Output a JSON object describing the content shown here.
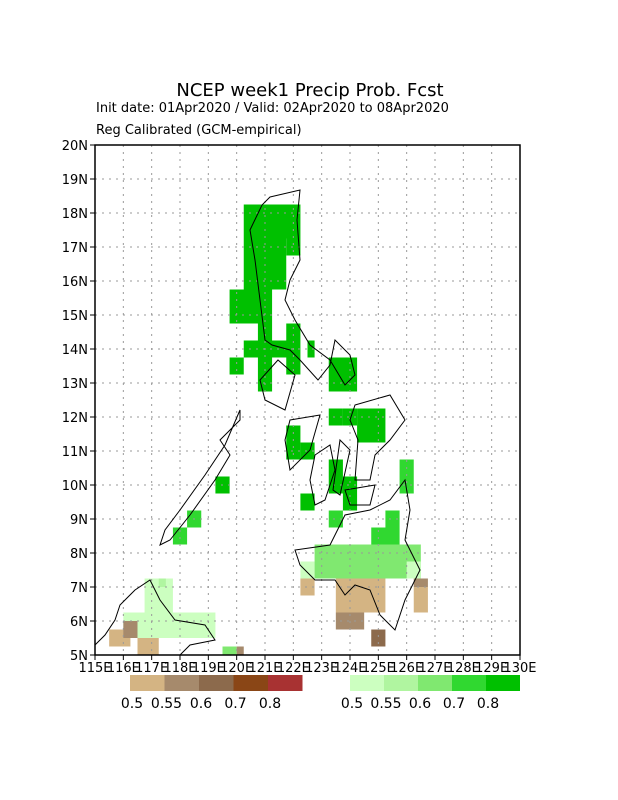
{
  "map": {
    "title": "NCEP week1 Precip Prob. Fcst",
    "subtitle": "Init date: 01Apr2020 / Valid: 02Apr2020 to 08Apr2020",
    "subtitle2": "Reg Calibrated (GCM-empirical)",
    "xlim": [
      115,
      130
    ],
    "ylim": [
      5,
      20
    ],
    "xticks": [
      {
        "value": 115,
        "label": "115E"
      },
      {
        "value": 116,
        "label": "116E"
      },
      {
        "value": 117,
        "label": "117E"
      },
      {
        "value": 118,
        "label": "118E"
      },
      {
        "value": 119,
        "label": "119E"
      },
      {
        "value": 120,
        "label": "120E"
      },
      {
        "value": 121,
        "label": "121E"
      },
      {
        "value": 122,
        "label": "122E"
      },
      {
        "value": 123,
        "label": "123E"
      },
      {
        "value": 124,
        "label": "124E"
      },
      {
        "value": 125,
        "label": "125E"
      },
      {
        "value": 126,
        "label": "126E"
      },
      {
        "value": 127,
        "label": "127E"
      },
      {
        "value": 128,
        "label": "128E"
      },
      {
        "value": 129,
        "label": "129E"
      },
      {
        "value": 130,
        "label": "130E"
      }
    ],
    "yticks": [
      {
        "value": 5,
        "label": "5N"
      },
      {
        "value": 6,
        "label": "6N"
      },
      {
        "value": 7,
        "label": "7N"
      },
      {
        "value": 8,
        "label": "8N"
      },
      {
        "value": 9,
        "label": "9N"
      },
      {
        "value": 10,
        "label": "10N"
      },
      {
        "value": 11,
        "label": "11N"
      },
      {
        "value": 12,
        "label": "12N"
      },
      {
        "value": 13,
        "label": "13N"
      },
      {
        "value": 14,
        "label": "14N"
      },
      {
        "value": 15,
        "label": "15N"
      },
      {
        "value": 16,
        "label": "16N"
      },
      {
        "value": 17,
        "label": "17N"
      },
      {
        "value": 18,
        "label": "18N"
      },
      {
        "value": 19,
        "label": "19N"
      },
      {
        "value": 20,
        "label": "20N"
      }
    ],
    "grid": true,
    "brown_scale": {
      "colors": [
        "#d4b483",
        "#a68a6c",
        "#8c6a4c",
        "#8a4616",
        "#a83232"
      ],
      "labels": [
        0.5,
        0.55,
        0.6,
        0.7,
        0.8
      ]
    },
    "green_scale": {
      "colors": [
        "#ccffc0",
        "#b0f5a0",
        "#80e870",
        "#30d830",
        "#00c000"
      ],
      "labels": [
        0.5,
        0.55,
        0.6,
        0.7,
        0.8
      ]
    },
    "green_cells": [
      [
        120.25,
        122.25,
        17.25,
        18.25,
        4
      ],
      [
        120.25,
        121.75,
        16.25,
        17.25,
        4
      ],
      [
        121.75,
        122.25,
        16.75,
        17.25,
        4
      ],
      [
        120.25,
        121.75,
        15.75,
        16.25,
        4
      ],
      [
        119.75,
        121.25,
        14.75,
        15.75,
        4
      ],
      [
        120.75,
        121.25,
        14.25,
        14.75,
        4
      ],
      [
        121.75,
        122.25,
        14.25,
        14.75,
        4
      ],
      [
        120.25,
        122.25,
        13.75,
        14.25,
        4
      ],
      [
        122.5,
        122.75,
        13.75,
        14.25,
        4
      ],
      [
        119.75,
        120.25,
        13.25,
        13.75,
        4
      ],
      [
        120.75,
        121.25,
        12.75,
        13.75,
        4
      ],
      [
        121.75,
        122.25,
        13.25,
        13.75,
        4
      ],
      [
        123.25,
        124.25,
        12.75,
        13.75,
        4
      ],
      [
        123.25,
        123.75,
        11.75,
        12.25,
        4
      ],
      [
        124.25,
        125.25,
        11.25,
        12.25,
        4
      ],
      [
        123.75,
        124.25,
        11.75,
        12.25,
        4
      ],
      [
        121.75,
        122.25,
        10.75,
        11.75,
        4
      ],
      [
        122.25,
        122.75,
        10.75,
        11.25,
        4
      ],
      [
        123.25,
        123.75,
        9.75,
        10.75,
        4
      ],
      [
        123.75,
        124.25,
        9.75,
        10.25,
        4
      ],
      [
        122.25,
        122.75,
        9.25,
        9.75,
        4
      ],
      [
        123.25,
        123.75,
        8.75,
        9.25,
        3
      ],
      [
        123.75,
        124.25,
        9.25,
        9.75,
        4
      ],
      [
        119.25,
        119.75,
        9.75,
        10.25,
        4
      ],
      [
        118.25,
        118.75,
        8.75,
        9.25,
        3
      ],
      [
        117.75,
        118.25,
        8.25,
        8.75,
        3
      ],
      [
        124.75,
        125.75,
        8.25,
        8.75,
        3
      ],
      [
        125.25,
        125.75,
        8.75,
        9.25,
        3
      ],
      [
        125.75,
        126.25,
        9.75,
        10.75,
        3
      ],
      [
        122.25,
        122.75,
        7.25,
        7.75,
        0
      ],
      [
        122.75,
        126.5,
        7.25,
        8.25,
        2
      ],
      [
        124.75,
        125.5,
        7.75,
        8.25,
        2
      ],
      [
        126.0,
        126.5,
        7.25,
        7.75,
        0
      ],
      [
        116.75,
        117.75,
        6.25,
        7.25,
        0
      ],
      [
        116.0,
        119.25,
        5.5,
        6.25,
        0
      ],
      [
        117.25,
        117.5,
        7.0,
        7.25,
        1
      ],
      [
        116.75,
        117.0,
        5.0,
        5.5,
        2
      ],
      [
        119.5,
        120.0,
        5.0,
        5.25,
        2
      ]
    ],
    "brown_cells": [
      [
        123.5,
        125.25,
        6.25,
        7.25,
        0
      ],
      [
        123.5,
        124.5,
        5.75,
        6.25,
        1
      ],
      [
        124.75,
        125.25,
        5.25,
        5.75,
        2
      ],
      [
        126.25,
        126.75,
        6.25,
        7.0,
        0
      ],
      [
        126.25,
        126.75,
        7.0,
        7.25,
        1
      ],
      [
        122.25,
        122.75,
        6.75,
        7.25,
        0
      ],
      [
        115.5,
        116.25,
        5.25,
        5.75,
        0
      ],
      [
        116.0,
        116.5,
        5.5,
        6.0,
        1
      ],
      [
        116.5,
        117.25,
        5.0,
        5.5,
        0
      ],
      [
        120.0,
        120.25,
        5.0,
        5.25,
        1
      ]
    ]
  }
}
